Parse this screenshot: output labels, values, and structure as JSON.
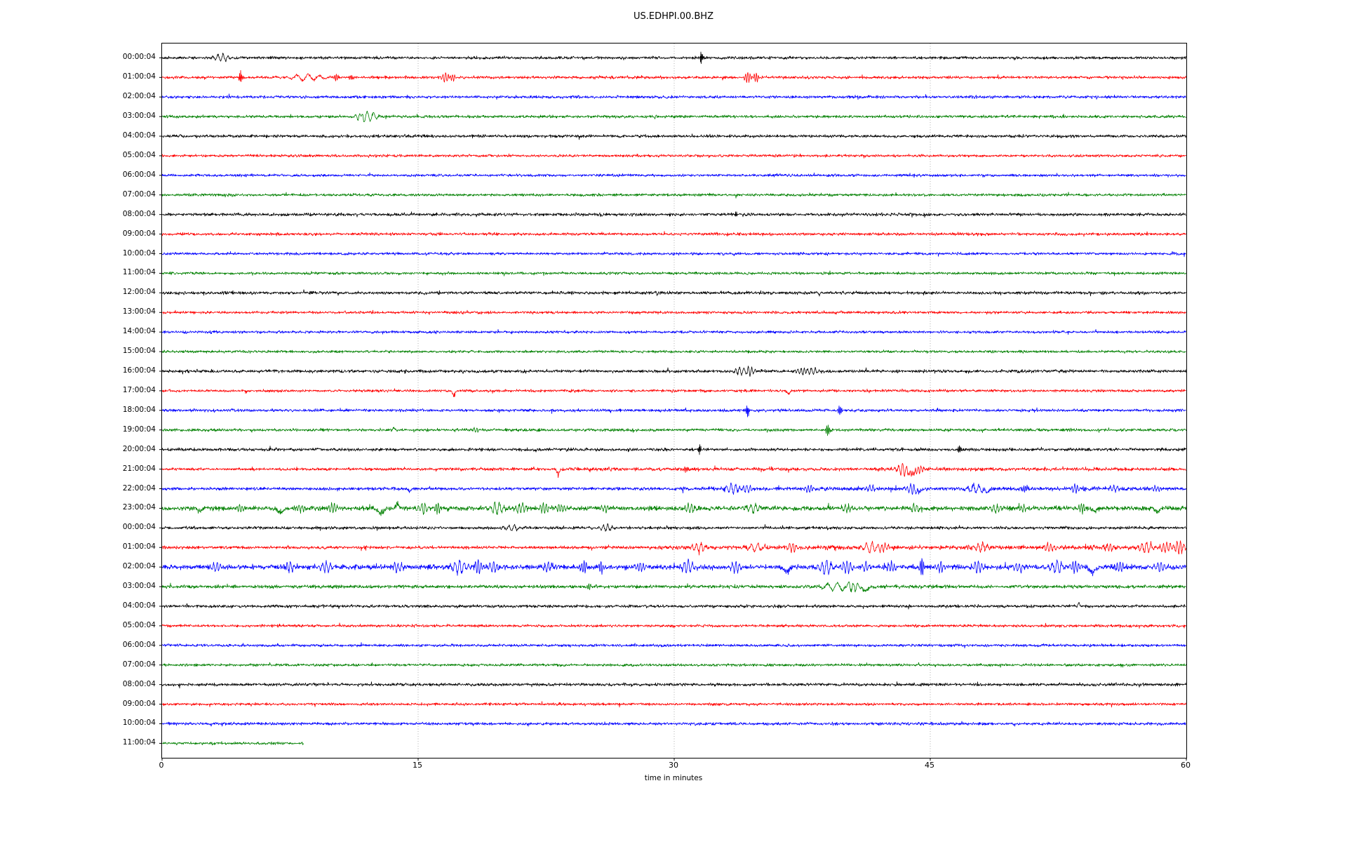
{
  "title": "US.EDHPI.00.BHZ",
  "chart_data": {
    "type": "line",
    "subtype": "helicorder-dayplot",
    "title": "US.EDHPI.00.BHZ",
    "xlabel": "time in minutes",
    "xlim": [
      0,
      60
    ],
    "xticks": [
      0,
      15,
      30,
      45,
      60
    ],
    "grid": {
      "vertical_at_minutes": [
        15,
        30,
        45
      ],
      "style": "dotted",
      "color": "#b0b0b0"
    },
    "legend": "none",
    "color_cycle": [
      "#000000",
      "#ff0000",
      "#0000ff",
      "#008000"
    ],
    "axis_color": "#000000",
    "background": "#ffffff",
    "rows": [
      {
        "label": "00:00:04",
        "color": "#000000",
        "base_amp": 2.8,
        "events": [
          [
            3.5,
            5,
            0.45,
            0
          ],
          [
            31.6,
            13,
            0.07,
            0
          ]
        ]
      },
      {
        "label": "01:00:04",
        "color": "#ff0000",
        "base_amp": 2.8,
        "events": [
          [
            4.6,
            9,
            0.1,
            0
          ],
          [
            8.5,
            4.5,
            1.0,
            0
          ],
          [
            10.2,
            5,
            0.15,
            0
          ],
          [
            11.1,
            4,
            0.12,
            0
          ],
          [
            16.6,
            7,
            0.25,
            0
          ],
          [
            17.0,
            5,
            0.2,
            0
          ],
          [
            34.3,
            7,
            0.2,
            0
          ],
          [
            34.8,
            6,
            0.18,
            0
          ]
        ]
      },
      {
        "label": "02:00:04",
        "color": "#0000ff",
        "base_amp": 2.8,
        "events": []
      },
      {
        "label": "03:00:04",
        "color": "#008000",
        "base_amp": 2.8,
        "events": [
          [
            11.6,
            4,
            0.3,
            0
          ],
          [
            12.1,
            7,
            0.55,
            0
          ]
        ]
      },
      {
        "label": "04:00:04",
        "color": "#000000",
        "base_amp": 3.0,
        "events": []
      },
      {
        "label": "05:00:04",
        "color": "#ff0000",
        "base_amp": 2.6,
        "events": []
      },
      {
        "label": "06:00:04",
        "color": "#0000ff",
        "base_amp": 2.6,
        "events": []
      },
      {
        "label": "07:00:04",
        "color": "#008000",
        "base_amp": 2.6,
        "events": []
      },
      {
        "label": "08:00:04",
        "color": "#000000",
        "base_amp": 3.0,
        "events": [
          [
            33.6,
            4,
            0.08,
            0
          ]
        ]
      },
      {
        "label": "09:00:04",
        "color": "#ff0000",
        "base_amp": 2.8,
        "events": []
      },
      {
        "label": "10:00:04",
        "color": "#0000ff",
        "base_amp": 2.6,
        "events": []
      },
      {
        "label": "11:00:04",
        "color": "#008000",
        "base_amp": 2.6,
        "events": []
      },
      {
        "label": "12:00:04",
        "color": "#000000",
        "base_amp": 3.0,
        "events": []
      },
      {
        "label": "13:00:04",
        "color": "#ff0000",
        "base_amp": 2.6,
        "events": []
      },
      {
        "label": "14:00:04",
        "color": "#0000ff",
        "base_amp": 2.6,
        "events": []
      },
      {
        "label": "15:00:04",
        "color": "#008000",
        "base_amp": 2.6,
        "events": []
      },
      {
        "label": "16:00:04",
        "color": "#000000",
        "base_amp": 3.0,
        "events": [
          [
            33.9,
            6,
            0.35,
            0
          ],
          [
            34.4,
            6,
            0.3,
            0
          ],
          [
            37.5,
            5,
            0.3,
            0
          ],
          [
            38.1,
            5,
            0.35,
            0
          ]
        ]
      },
      {
        "label": "17:00:04",
        "color": "#ff0000",
        "base_amp": 2.6,
        "events": [
          [
            17.1,
            11,
            0.09,
            -1
          ],
          [
            36.7,
            5,
            0.12,
            -1
          ]
        ]
      },
      {
        "label": "18:00:04",
        "color": "#0000ff",
        "base_amp": 2.8,
        "events": [
          [
            34.3,
            9,
            0.1,
            0
          ],
          [
            39.7,
            7,
            0.12,
            0
          ]
        ]
      },
      {
        "label": "19:00:04",
        "color": "#008000",
        "base_amp": 2.8,
        "events": [
          [
            13.6,
            4,
            0.07,
            1
          ],
          [
            18.4,
            3,
            0.25,
            0
          ],
          [
            39.0,
            8,
            0.12,
            0
          ]
        ]
      },
      {
        "label": "20:00:04",
        "color": "#000000",
        "base_amp": 3.0,
        "events": [
          [
            31.5,
            9,
            0.08,
            0
          ],
          [
            46.7,
            6,
            0.1,
            0
          ]
        ]
      },
      {
        "label": "21:00:04",
        "color": "#ff0000",
        "base_amp": 2.6,
        "amp_segments": [
          {
            "from": 17,
            "amp": 3.4
          }
        ],
        "events": [
          [
            23.2,
            10,
            0.08,
            -1
          ],
          [
            30.7,
            5,
            0.12,
            0
          ],
          [
            43.4,
            8,
            0.35,
            0
          ],
          [
            43.9,
            9,
            0.3,
            -1
          ],
          [
            44.3,
            6,
            0.25,
            0
          ]
        ]
      },
      {
        "label": "22:00:04",
        "color": "#0000ff",
        "base_amp": 3.0,
        "amp_segments": [
          {
            "from": 30,
            "amp": 3.8
          }
        ],
        "events": [
          [
            14.5,
            5,
            0.1,
            -1
          ],
          [
            33.4,
            7,
            0.4,
            0
          ],
          [
            34.3,
            6,
            0.3,
            0
          ],
          [
            37.9,
            6,
            0.25,
            0
          ],
          [
            41.5,
            4,
            0.3,
            0
          ],
          [
            43.9,
            7,
            0.3,
            0
          ],
          [
            44.3,
            6,
            0.2,
            -1
          ],
          [
            47.6,
            6,
            0.5,
            0
          ],
          [
            48.3,
            5,
            0.3,
            -1
          ],
          [
            50.6,
            5,
            0.15,
            0
          ],
          [
            53.5,
            6,
            0.25,
            0
          ],
          [
            55.8,
            4,
            0.3,
            0
          ],
          [
            58.2,
            4,
            0.25,
            0
          ]
        ]
      },
      {
        "label": "23:00:04",
        "color": "#008000",
        "base_amp": 4.5,
        "events": [
          [
            2.2,
            6,
            0.15,
            -1
          ],
          [
            4.6,
            5,
            0.25,
            0
          ],
          [
            6.9,
            8,
            0.2,
            -1
          ],
          [
            8.1,
            5,
            0.25,
            0
          ],
          [
            10.0,
            7,
            0.25,
            0
          ],
          [
            12.8,
            9,
            0.25,
            -1
          ],
          [
            13.8,
            7,
            0.15,
            1
          ],
          [
            15.3,
            8,
            0.3,
            0
          ],
          [
            16.1,
            6,
            0.2,
            0
          ],
          [
            19.6,
            8,
            0.4,
            0
          ],
          [
            21.0,
            7,
            0.3,
            0
          ],
          [
            22.4,
            8,
            0.25,
            0
          ],
          [
            23.3,
            6,
            0.25,
            0
          ],
          [
            26.0,
            5,
            0.25,
            0
          ],
          [
            30.9,
            6,
            0.3,
            0
          ],
          [
            34.6,
            6,
            0.4,
            0
          ],
          [
            40.1,
            5,
            0.3,
            0
          ],
          [
            44.1,
            6,
            0.3,
            0
          ],
          [
            48.8,
            6,
            0.3,
            0
          ],
          [
            50.4,
            5,
            0.25,
            0
          ],
          [
            53.9,
            8,
            0.2,
            0
          ],
          [
            54.6,
            6,
            0.2,
            -1
          ],
          [
            58.3,
            6,
            0.2,
            -1
          ]
        ]
      },
      {
        "label": "00:00:04",
        "color": "#000000",
        "base_amp": 2.9,
        "events": [
          [
            20.5,
            4,
            0.5,
            0
          ],
          [
            26.0,
            4,
            0.4,
            0
          ]
        ]
      },
      {
        "label": "01:00:04",
        "color": "#ff0000",
        "base_amp": 3.0,
        "amp_segments": [
          {
            "from": 29,
            "amp": 4.2
          }
        ],
        "events": [
          [
            31.5,
            6,
            0.4,
            0
          ],
          [
            34.8,
            5,
            0.6,
            0
          ],
          [
            36.9,
            6,
            0.3,
            0
          ],
          [
            41.5,
            7,
            0.5,
            0
          ],
          [
            42.3,
            6,
            0.3,
            0
          ],
          [
            48.0,
            6,
            0.4,
            0
          ],
          [
            52.0,
            6,
            0.3,
            0
          ],
          [
            55.5,
            6,
            0.3,
            0
          ],
          [
            57.6,
            8,
            0.4,
            0
          ],
          [
            58.8,
            8,
            0.3,
            0
          ],
          [
            59.6,
            9,
            0.3,
            0
          ]
        ]
      },
      {
        "label": "02:00:04",
        "color": "#0000ff",
        "base_amp": 5.0,
        "events": [
          [
            3.2,
            7,
            0.3,
            0
          ],
          [
            7.5,
            7,
            0.3,
            0
          ],
          [
            9.6,
            8,
            0.35,
            0
          ],
          [
            13.8,
            7,
            0.3,
            0
          ],
          [
            17.4,
            9,
            0.4,
            0
          ],
          [
            18.5,
            12,
            0.25,
            0
          ],
          [
            19.4,
            8,
            0.3,
            0
          ],
          [
            22.6,
            7,
            0.3,
            0
          ],
          [
            24.7,
            9,
            0.2,
            0
          ],
          [
            25.7,
            8,
            0.18,
            0
          ],
          [
            28.0,
            7,
            0.25,
            0
          ],
          [
            30.8,
            10,
            0.35,
            0
          ],
          [
            33.6,
            8,
            0.3,
            0
          ],
          [
            36.6,
            9,
            0.2,
            -1
          ],
          [
            38.9,
            10,
            0.4,
            0
          ],
          [
            40.1,
            9,
            0.3,
            0
          ],
          [
            41.2,
            7,
            0.3,
            0
          ],
          [
            42.7,
            8,
            0.25,
            0
          ],
          [
            44.5,
            12,
            0.15,
            0
          ],
          [
            45.6,
            7,
            0.25,
            0
          ],
          [
            47.8,
            8,
            0.3,
            0
          ],
          [
            50.2,
            7,
            0.3,
            0
          ],
          [
            52.4,
            9,
            0.4,
            0
          ],
          [
            53.5,
            8,
            0.25,
            0
          ],
          [
            54.5,
            10,
            0.2,
            -1
          ],
          [
            56.1,
            7,
            0.25,
            0
          ],
          [
            58.5,
            7,
            0.3,
            0
          ]
        ]
      },
      {
        "label": "03:00:04",
        "color": "#008000",
        "base_amp": 3.3,
        "events": [
          [
            25.0,
            4,
            0.15,
            0
          ],
          [
            39.6,
            6,
            0.9,
            0
          ],
          [
            40.5,
            7,
            0.4,
            0
          ],
          [
            41.2,
            8,
            0.2,
            -1
          ]
        ]
      },
      {
        "label": "04:00:04",
        "color": "#000000",
        "base_amp": 2.9,
        "events": [
          [
            53.7,
            5,
            0.07,
            1
          ]
        ]
      },
      {
        "label": "05:00:04",
        "color": "#ff0000",
        "base_amp": 2.7,
        "events": []
      },
      {
        "label": "06:00:04",
        "color": "#0000ff",
        "base_amp": 2.7,
        "events": []
      },
      {
        "label": "07:00:04",
        "color": "#008000",
        "base_amp": 2.6,
        "events": []
      },
      {
        "label": "08:00:04",
        "color": "#000000",
        "base_amp": 2.9,
        "events": []
      },
      {
        "label": "09:00:04",
        "color": "#ff0000",
        "base_amp": 2.6,
        "events": []
      },
      {
        "label": "10:00:04",
        "color": "#0000ff",
        "base_amp": 2.8,
        "events": []
      },
      {
        "label": "11:00:04",
        "color": "#008000",
        "base_amp": 2.7,
        "end_min": 8.3,
        "events": []
      }
    ]
  }
}
